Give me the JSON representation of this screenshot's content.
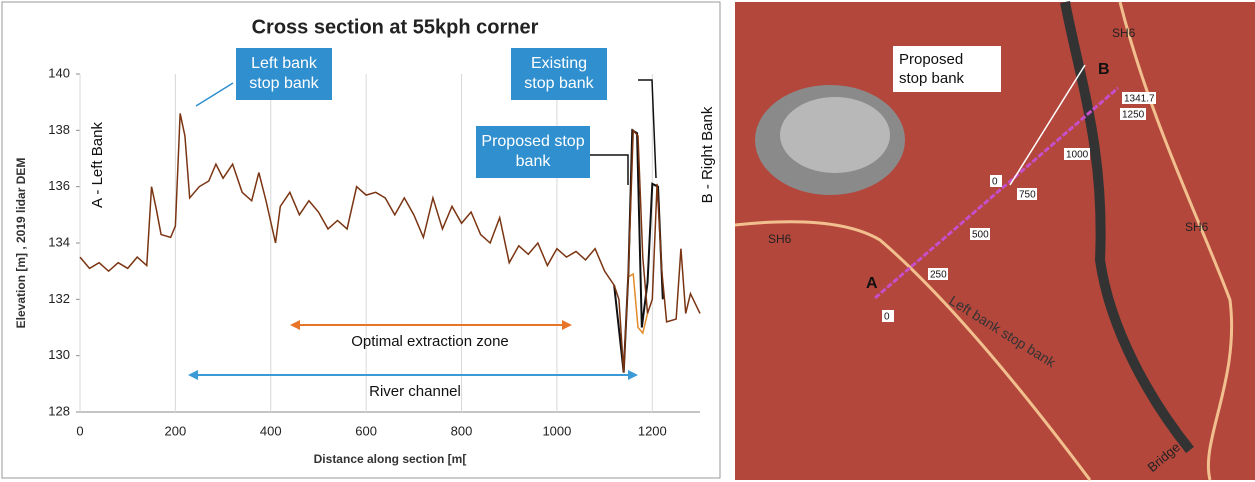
{
  "chart_data": {
    "type": "line",
    "title": "Cross section at 55kph corner",
    "x_label": "Distance along section [m[",
    "y_label": "Elevation [m] , 2019 lidar DEM",
    "annotations": [
      "Left bank stop bank",
      "Existing stop bank",
      "Proposed stop bank",
      "A - Left Bank",
      "B - Right Bank",
      "Optimal extraction zone",
      "River channel"
    ],
    "xlim": [
      0,
      1300
    ],
    "ylim": [
      128,
      140
    ],
    "xticks": [
      0,
      200,
      400,
      600,
      800,
      1000,
      1200
    ],
    "yticks": [
      128,
      130,
      132,
      134,
      136,
      138,
      140
    ],
    "grid": true,
    "series": [
      {
        "color": "#7a3412",
        "x": [
          0,
          20,
          40,
          60,
          80,
          100,
          120,
          140,
          150,
          160,
          170,
          190,
          200,
          210,
          220,
          230,
          250,
          270,
          285,
          300,
          320,
          340,
          360,
          375,
          390,
          410,
          420,
          440,
          460,
          480,
          500,
          520,
          540,
          560,
          580,
          600,
          620,
          640,
          660,
          680,
          700,
          720,
          740,
          760,
          780,
          800,
          820,
          840,
          860,
          880,
          900,
          920,
          940,
          960,
          980,
          1000,
          1020,
          1040,
          1060,
          1080,
          1100,
          1120,
          1130,
          1140,
          1150,
          1160,
          1170,
          1180,
          1190,
          1200,
          1210,
          1220,
          1230,
          1250,
          1260,
          1270,
          1280,
          1300
        ],
        "values": [
          133.5,
          133.1,
          133.3,
          133.0,
          133.3,
          133.1,
          133.5,
          133.2,
          136.0,
          135.2,
          134.3,
          134.2,
          134.6,
          138.6,
          137.8,
          135.6,
          136.0,
          136.2,
          136.8,
          136.3,
          136.8,
          135.8,
          135.5,
          136.5,
          135.5,
          134.0,
          135.3,
          135.8,
          135.0,
          135.5,
          135.1,
          134.5,
          134.8,
          134.5,
          136.0,
          135.7,
          135.8,
          135.6,
          135.0,
          135.6,
          135.0,
          134.2,
          135.6,
          134.5,
          135.3,
          134.7,
          135.1,
          134.3,
          134.0,
          134.9,
          133.3,
          133.9,
          133.6,
          134.0,
          133.2,
          133.8,
          133.5,
          133.7,
          133.4,
          133.8,
          133.0,
          132.5,
          132.0,
          129.4,
          133.0,
          138.0,
          137.8,
          133.5,
          131.5,
          132.0,
          136.1,
          133.0,
          131.2,
          131.3,
          133.8,
          131.5,
          132.2,
          131.5
        ]
      },
      {
        "color": "#111111",
        "x": [
          1120,
          1140,
          1150,
          1158,
          1168,
          1178,
          1190,
          1200,
          1212,
          1222
        ],
        "values": [
          132.5,
          129.4,
          133.0,
          138.0,
          137.9,
          131.0,
          132.6,
          136.1,
          136.0,
          132.0
        ]
      },
      {
        "color": "#e08a2a",
        "x": [
          1150,
          1160,
          1170,
          1180,
          1190
        ],
        "values": [
          132.8,
          132.9,
          131.0,
          130.8,
          131.5
        ]
      }
    ]
  },
  "map": {
    "callout": "Proposed stop bank",
    "points": [
      "A",
      "B"
    ],
    "roads": [
      "SH6",
      "SH6",
      "SH6"
    ],
    "chainage": [
      "0",
      "250",
      "500",
      "750",
      "1000",
      "1250",
      "1341.7",
      "0"
    ],
    "features": [
      "Left bank stop bank",
      "Bridge"
    ]
  }
}
